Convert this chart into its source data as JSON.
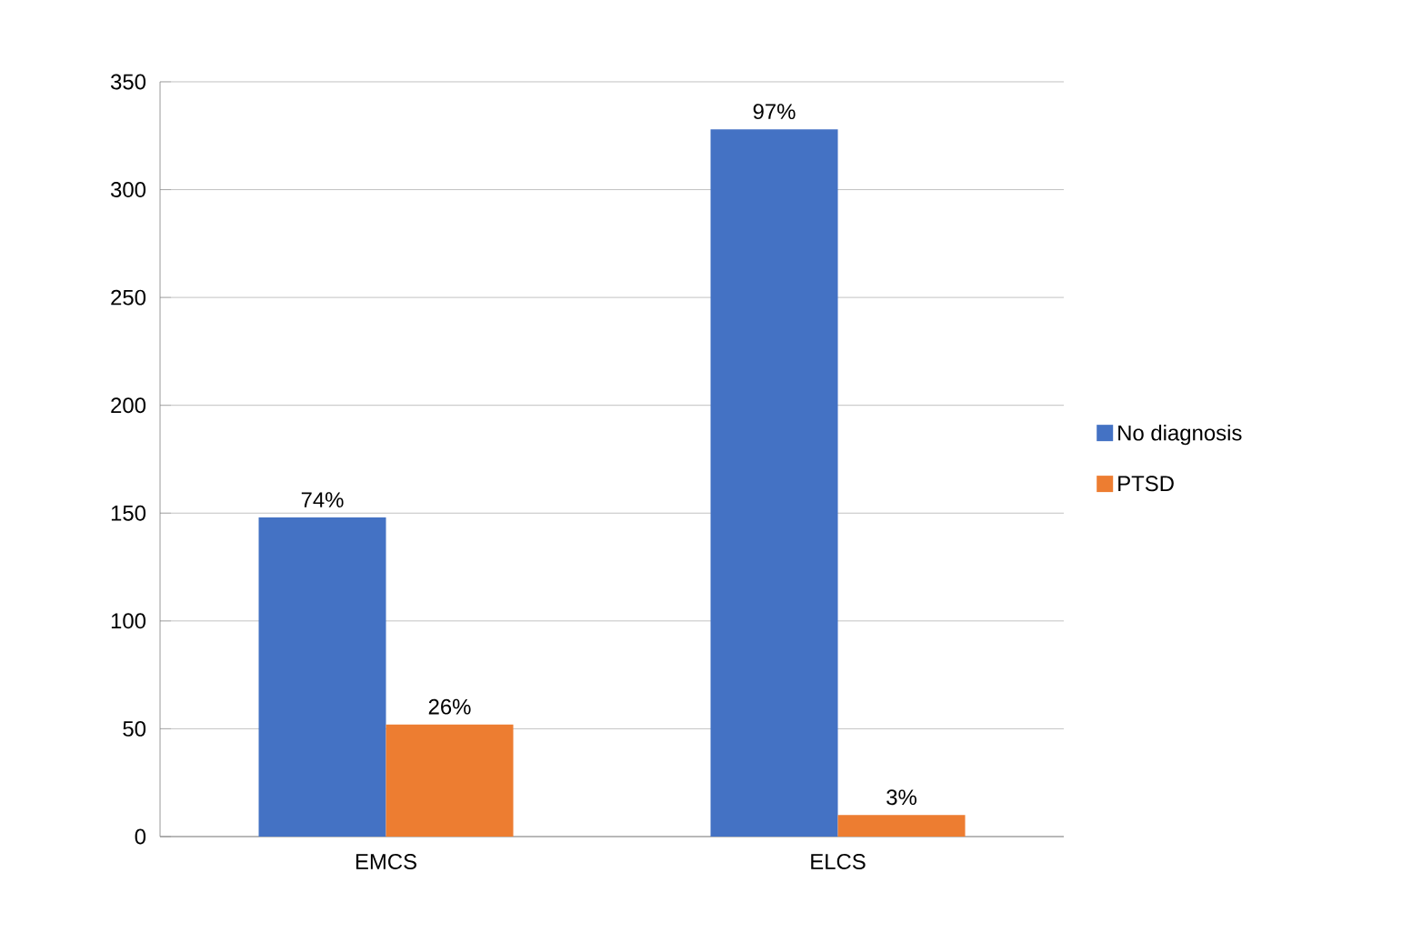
{
  "chart_data": {
    "type": "bar",
    "categories": [
      "EMCS",
      "ELCS"
    ],
    "series": [
      {
        "name": "No diagnosis",
        "color": "#4472c4",
        "values": [
          148,
          328
        ]
      },
      {
        "name": "PTSD",
        "color": "#ed7d31",
        "values": [
          52,
          10
        ]
      }
    ],
    "annotations": [
      {
        "text": "74%",
        "x": "EMCS",
        "y": 148
      },
      {
        "text": "26%",
        "x": "EMCS",
        "y": 52
      },
      {
        "text": "97%",
        "x": "ELCS",
        "y": 328
      },
      {
        "text": "3%",
        "x": "ELCS",
        "y": 10
      }
    ],
    "ylim": [
      0,
      350
    ],
    "yticks": [
      0,
      50,
      100,
      150,
      200,
      250,
      300,
      350
    ],
    "grid": "y",
    "legend": "right"
  }
}
